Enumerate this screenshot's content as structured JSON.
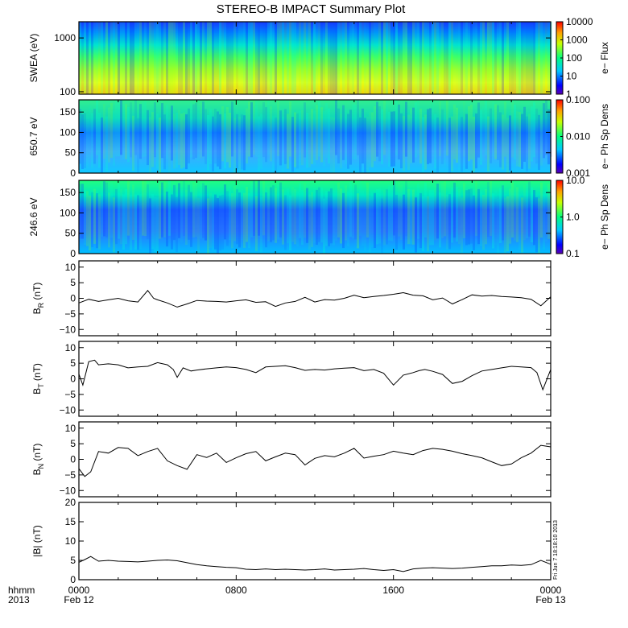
{
  "title": "STEREO-B IMPACT Summary Plot",
  "stamp": "Fri Jun  7 18:18:10 2013",
  "colors": {
    "frame": "#000000",
    "trace": "#000000",
    "background": "#ffffff"
  },
  "x_axis": {
    "row_labels": [
      "hhmm",
      "2013"
    ],
    "ticks": [
      {
        "hours": 0,
        "line1": "0000",
        "line2": "Feb 12"
      },
      {
        "hours": 8,
        "line1": "0800",
        "line2": ""
      },
      {
        "hours": 16,
        "line1": "1600",
        "line2": ""
      },
      {
        "hours": 24,
        "line1": "0000",
        "line2": "Feb 13"
      }
    ],
    "range_hours": [
      0,
      24
    ]
  },
  "chart_data": [
    {
      "type": "heatmap",
      "ylabel": "SWEA (eV)",
      "y_scale": "log",
      "ylim": [
        90,
        2000
      ],
      "yticks": [
        {
          "v": 100,
          "t": "100"
        },
        {
          "v": 1000,
          "t": "1000"
        }
      ],
      "colorbar": {
        "label": "e− Flux",
        "scale": "log",
        "range": [
          1,
          10000
        ],
        "ticks": [
          {
            "v": 1,
            "t": "1"
          },
          {
            "v": 10,
            "t": "10"
          },
          {
            "v": 100,
            "t": "100"
          },
          {
            "v": 1000,
            "t": "1000"
          },
          {
            "v": 10000,
            "t": "10000"
          }
        ]
      },
      "description_of_values": "flux highest near 100 eV (yellow-orange), decreasing to blue near 2000 eV",
      "rows_by_energy_eV": [
        {
          "e": 2000,
          "flux": 2
        },
        {
          "e": 1300,
          "flux": 5
        },
        {
          "e": 900,
          "flux": 12
        },
        {
          "e": 600,
          "flux": 60
        },
        {
          "e": 400,
          "flux": 200
        },
        {
          "e": 250,
          "flux": 600
        },
        {
          "e": 160,
          "flux": 1500
        },
        {
          "e": 110,
          "flux": 3000
        }
      ]
    },
    {
      "type": "heatmap",
      "ylabel": "650.7 eV",
      "y_scale": "linear",
      "ylim": [
        0,
        180
      ],
      "yticks": [
        {
          "v": 0,
          "t": "0"
        },
        {
          "v": 50,
          "t": "50"
        },
        {
          "v": 100,
          "t": "100"
        },
        {
          "v": 150,
          "t": "150"
        }
      ],
      "colorbar": {
        "label": "e− Ph Sp Dens",
        "scale": "log",
        "range": [
          0.001,
          0.1
        ],
        "ticks": [
          {
            "v": 0.001,
            "t": "0.001"
          },
          {
            "v": 0.01,
            "t": "0.010"
          },
          {
            "v": 0.1,
            "t": "0.100"
          }
        ]
      },
      "description_of_values": "greener near 180 deg, bluer/cyan at lower pitch angles, darker blue patches early in the day"
    },
    {
      "type": "heatmap",
      "ylabel": "246.6 eV",
      "y_scale": "linear",
      "ylim": [
        0,
        180
      ],
      "yticks": [
        {
          "v": 0,
          "t": "0"
        },
        {
          "v": 50,
          "t": "50"
        },
        {
          "v": 100,
          "t": "100"
        },
        {
          "v": 150,
          "t": "150"
        }
      ],
      "colorbar": {
        "label": "e− Ph Sp Dens",
        "scale": "log",
        "range": [
          0.1,
          10
        ],
        "ticks": [
          {
            "v": 0.1,
            "t": "0.1"
          },
          {
            "v": 1,
            "t": "1.0"
          },
          {
            "v": 10,
            "t": "10.0"
          }
        ]
      },
      "description_of_values": "green band above ~140 deg, cyan mid, dark blue 50-110 deg in the early hours"
    },
    {
      "type": "line",
      "ylabel": "B_R (nT)",
      "ylabel_main": "B",
      "ylabel_sub": "R",
      "ylabel_unit": " (nT)",
      "ylim": [
        -12,
        12
      ],
      "yticks": [
        {
          "v": -10,
          "t": "−10"
        },
        {
          "v": -5,
          "t": "−5"
        },
        {
          "v": 0,
          "t": "0"
        },
        {
          "v": 5,
          "t": "5"
        },
        {
          "v": 10,
          "t": "10"
        }
      ],
      "x": [
        0,
        0.5,
        1,
        1.5,
        2,
        2.5,
        3,
        3.5,
        3.8,
        4,
        4.5,
        5,
        5.5,
        6,
        6.5,
        7,
        7.5,
        8,
        8.5,
        9,
        9.5,
        10,
        10.5,
        11,
        11.5,
        12,
        12.5,
        13,
        13.5,
        14,
        14.5,
        15,
        15.5,
        16,
        16.5,
        17,
        17.5,
        18,
        18.5,
        19,
        19.5,
        20,
        20.5,
        21,
        21.5,
        22,
        22.5,
        23,
        23.5,
        24
      ],
      "y": [
        -1.5,
        -0.3,
        -1.0,
        -0.5,
        0,
        -0.8,
        -1.2,
        2.5,
        0,
        -0.5,
        -1.5,
        -2.8,
        -1.8,
        -0.7,
        -0.9,
        -1,
        -1.2,
        -0.8,
        -0.5,
        -1.3,
        -1.1,
        -2.6,
        -1.5,
        -1,
        0.3,
        -1.2,
        -0.4,
        -0.6,
        0,
        1.0,
        0.2,
        0.6,
        0.9,
        1.3,
        1.8,
        1.0,
        0.8,
        -0.5,
        0.1,
        -1.8,
        -0.4,
        1.1,
        0.7,
        0.9,
        0.6,
        0.4,
        0.2,
        -0.3,
        -2.4,
        0.5
      ]
    },
    {
      "type": "line",
      "ylabel": "B_T (nT)",
      "ylabel_main": "B",
      "ylabel_sub": "T",
      "ylabel_unit": " (nT)",
      "ylim": [
        -12,
        12
      ],
      "yticks": [
        {
          "v": -10,
          "t": "−10"
        },
        {
          "v": -5,
          "t": "−5"
        },
        {
          "v": 0,
          "t": "0"
        },
        {
          "v": 5,
          "t": "5"
        },
        {
          "v": 10,
          "t": "10"
        }
      ],
      "x": [
        0,
        0.2,
        0.5,
        0.8,
        1,
        1.5,
        2,
        2.5,
        3,
        3.5,
        4,
        4.5,
        4.8,
        5,
        5.3,
        5.7,
        6,
        6.5,
        7,
        7.5,
        8,
        8.5,
        9,
        9.5,
        10,
        10.5,
        11,
        11.5,
        12,
        12.5,
        13,
        13.5,
        14,
        14.5,
        15,
        15.5,
        16,
        16.5,
        17,
        17.3,
        17.6,
        18,
        18.5,
        19,
        19.5,
        20,
        20.5,
        21,
        21.5,
        22,
        22.5,
        23,
        23.3,
        23.6,
        24
      ],
      "y": [
        1.5,
        -2.0,
        5.5,
        6.0,
        4.5,
        4.8,
        4.5,
        3.5,
        3.8,
        4.0,
        5.2,
        4.5,
        3.0,
        0.5,
        3.5,
        2.5,
        2.8,
        3.2,
        3.5,
        3.8,
        3.6,
        3.0,
        2.0,
        3.8,
        4.0,
        4.2,
        3.6,
        2.7,
        3.0,
        2.8,
        3.2,
        3.4,
        3.6,
        2.6,
        3.0,
        1.8,
        -2.0,
        1.2,
        2.0,
        2.6,
        3.0,
        2.4,
        1.4,
        -1.5,
        -0.8,
        1.0,
        2.5,
        3.0,
        3.5,
        4.0,
        3.8,
        3.6,
        2.0,
        -3.5,
        3.0
      ]
    },
    {
      "type": "line",
      "ylabel": "B_N (nT)",
      "ylabel_main": "B",
      "ylabel_sub": "N",
      "ylabel_unit": " (nT)",
      "ylim": [
        -12,
        12
      ],
      "yticks": [
        {
          "v": -10,
          "t": "−10"
        },
        {
          "v": -5,
          "t": "−5"
        },
        {
          "v": 0,
          "t": "0"
        },
        {
          "v": 5,
          "t": "5"
        },
        {
          "v": 10,
          "t": "10"
        }
      ],
      "x": [
        0,
        0.3,
        0.6,
        1,
        1.5,
        2,
        2.5,
        3,
        3.5,
        4,
        4.5,
        5,
        5.5,
        6,
        6.5,
        7,
        7.5,
        8,
        8.5,
        9,
        9.5,
        10,
        10.5,
        11,
        11.5,
        12,
        12.5,
        13,
        13.5,
        14,
        14.5,
        15,
        15.5,
        16,
        16.5,
        17,
        17.5,
        18,
        18.5,
        19,
        19.5,
        20,
        20.5,
        21,
        21.5,
        22,
        22.5,
        23,
        23.5,
        24
      ],
      "y": [
        -3.0,
        -5.5,
        -4.0,
        2.5,
        2.0,
        3.8,
        3.5,
        1.2,
        2.5,
        3.5,
        -0.5,
        -2.0,
        -3.2,
        1.5,
        0.6,
        2.0,
        -1.0,
        0.5,
        1.8,
        2.5,
        -0.5,
        0.8,
        2.0,
        1.5,
        -1.8,
        0.3,
        1.2,
        0.8,
        2.0,
        3.5,
        0.4,
        1.0,
        1.5,
        2.6,
        2.0,
        1.5,
        2.8,
        3.5,
        3.2,
        2.6,
        1.8,
        1.2,
        0.5,
        -0.8,
        -2.0,
        -1.5,
        0.5,
        2.0,
        4.5,
        4.0
      ]
    },
    {
      "type": "line",
      "ylabel": "|B| (nT)",
      "ylabel_main": "|B|",
      "ylabel_sub": "",
      "ylabel_unit": " (nT)",
      "ylim": [
        0,
        20
      ],
      "yticks": [
        {
          "v": 0,
          "t": "0"
        },
        {
          "v": 5,
          "t": "5"
        },
        {
          "v": 10,
          "t": "10"
        },
        {
          "v": 15,
          "t": "15"
        },
        {
          "v": 20,
          "t": "20"
        }
      ],
      "x": [
        0,
        0.3,
        0.6,
        1,
        1.5,
        2,
        2.5,
        3,
        3.5,
        4,
        4.5,
        5,
        5.5,
        6,
        6.5,
        7,
        7.5,
        8,
        8.5,
        9,
        9.5,
        10,
        10.5,
        11,
        11.5,
        12,
        12.5,
        13,
        13.5,
        14,
        14.5,
        15,
        15.5,
        16,
        16.5,
        17,
        17.5,
        18,
        18.5,
        19,
        19.5,
        20,
        20.5,
        21,
        21.5,
        22,
        22.5,
        23,
        23.5,
        24
      ],
      "y": [
        4.5,
        5.2,
        6.0,
        4.8,
        5.0,
        4.8,
        4.7,
        4.6,
        4.8,
        5.0,
        5.1,
        4.9,
        4.4,
        3.9,
        3.6,
        3.4,
        3.2,
        3.1,
        2.7,
        2.6,
        2.8,
        2.6,
        2.7,
        2.6,
        2.5,
        2.6,
        2.8,
        2.5,
        2.6,
        2.7,
        2.9,
        2.6,
        2.4,
        2.6,
        2.1,
        2.8,
        3.0,
        3.1,
        3.0,
        2.9,
        3.0,
        3.2,
        3.4,
        3.6,
        3.6,
        3.8,
        3.7,
        3.9,
        5.0,
        4.0
      ]
    }
  ]
}
